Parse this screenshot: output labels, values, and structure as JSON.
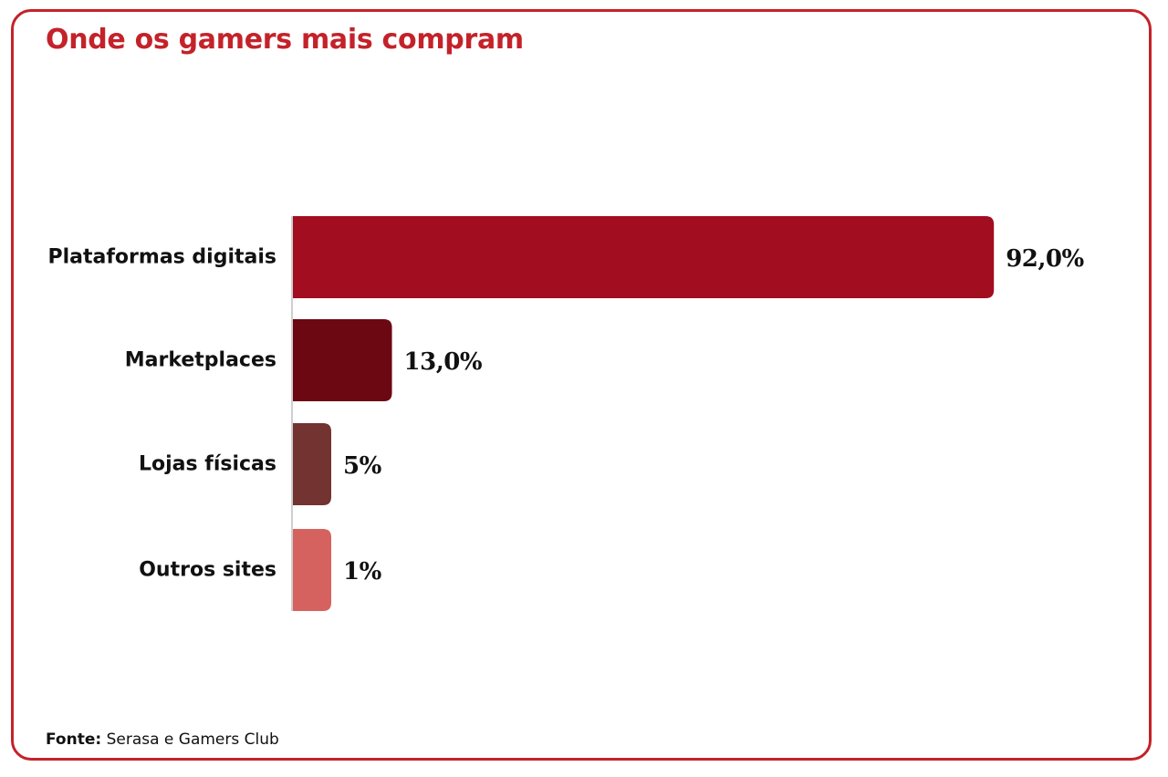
{
  "chart_data": {
    "type": "bar",
    "orientation": "horizontal",
    "title": "Onde os gamers mais compram",
    "categories": [
      "Plataformas digitais",
      "Marketplaces",
      "Lojas físicas",
      "Outros sites"
    ],
    "values": [
      92.0,
      13.0,
      5,
      1
    ],
    "value_labels": [
      "92,0%",
      "13,0%",
      "5%",
      "1%"
    ],
    "colors": [
      "#a20d20",
      "#6b0812",
      "#733330",
      "#d6625f"
    ],
    "xlim": [
      0,
      100
    ],
    "xlabel": "",
    "ylabel": "",
    "grid": false,
    "legend": "none"
  },
  "colors": {
    "frame": "#c4222a",
    "title": "#c4222a",
    "axis": "#cfcfcf"
  },
  "source": {
    "label": "Fonte:",
    "text": "Serasa e Gamers Club"
  }
}
